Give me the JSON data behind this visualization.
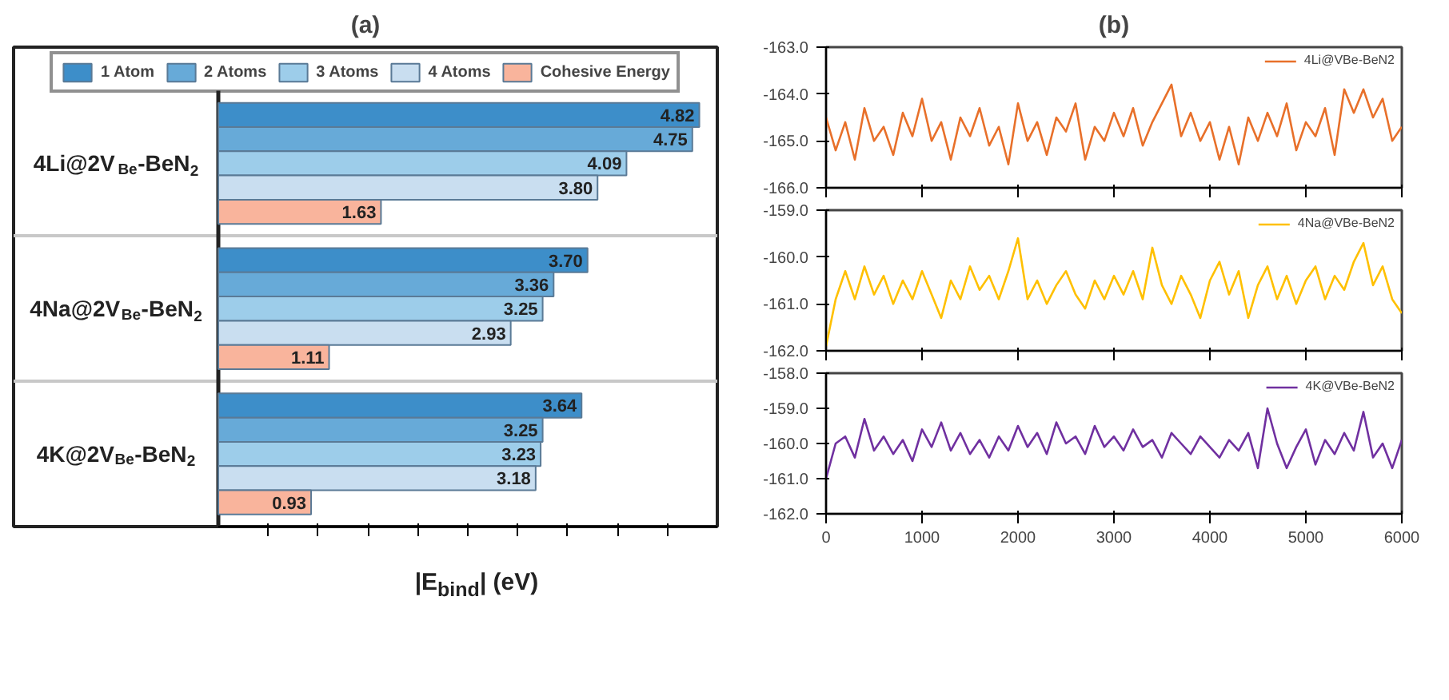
{
  "chart_data": [
    {
      "type": "bar",
      "orientation": "horizontal",
      "title": "(a)",
      "xlabel": "|E$_{bind}$| (eV)",
      "categories": [
        "4Li@2V$_{Be}$-BeN$_{2}$",
        "4Na@2V$_{Be}$-BeN$_{2}$",
        "4K@2V$_{Be}$-BeN$_{2}$"
      ],
      "series": [
        {
          "name": "1 Atom",
          "color": "#3d8ec9",
          "values": [
            4.82,
            3.7,
            3.64
          ],
          "value_labels": [
            "4.82",
            "3.70",
            "3.64"
          ]
        },
        {
          "name": "2 Atoms",
          "color": "#67aad8",
          "values": [
            4.75,
            3.36,
            3.25
          ],
          "value_labels": [
            "4.75",
            "3.36",
            "3.25"
          ]
        },
        {
          "name": "3 Atoms",
          "color": "#9dcdea",
          "values": [
            4.09,
            3.25,
            3.23
          ],
          "value_labels": [
            "4.09",
            "3.25",
            "3.23"
          ]
        },
        {
          "name": "4 Atoms",
          "color": "#c9def0",
          "values": [
            3.8,
            2.93,
            3.18
          ],
          "value_labels": [
            "3.80",
            "2.93",
            "3.18"
          ]
        },
        {
          "name": "Cohesive Energy",
          "color": "#f9b49c",
          "values": [
            1.63,
            1.11,
            0.93
          ],
          "value_labels": [
            "1.63",
            "1.11",
            "0.93"
          ]
        }
      ],
      "xlim": [
        0,
        5
      ],
      "xticks": [
        {
          "value": 0.5,
          "label": null
        },
        {
          "value": 1.0,
          "label": null
        },
        {
          "value": 1.5,
          "label": null
        },
        {
          "value": 2.0,
          "label": null
        },
        {
          "value": 2.5,
          "label": null
        },
        {
          "value": 3.0,
          "label": null
        },
        {
          "value": 3.5,
          "label": null
        },
        {
          "value": 4.0,
          "label": null
        },
        {
          "value": 4.5,
          "label": null
        }
      ],
      "legend": "top",
      "grid": "y"
    },
    {
      "type": "line",
      "title": "(b)",
      "x": [
        0,
        100,
        200,
        300,
        400,
        500,
        600,
        700,
        800,
        900,
        1000,
        1100,
        1200,
        1300,
        1400,
        1500,
        1600,
        1700,
        1800,
        1900,
        2000,
        2100,
        2200,
        2300,
        2400,
        2500,
        2600,
        2700,
        2800,
        2900,
        3000,
        3100,
        3200,
        3300,
        3400,
        3500,
        3600,
        3700,
        3800,
        3900,
        4000,
        4100,
        4200,
        4300,
        4400,
        4500,
        4600,
        4700,
        4800,
        4900,
        5000,
        5100,
        5200,
        5300,
        5400,
        5500,
        5600,
        5700,
        5800,
        5900,
        6000
      ],
      "series": [
        {
          "name": "4Li@VBe-BeN2",
          "color": "#e8702a",
          "values": [
            -164.5,
            -165.2,
            -164.6,
            -165.4,
            -164.3,
            -165.0,
            -164.7,
            -165.3,
            -164.4,
            -164.9,
            -164.1,
            -165.0,
            -164.6,
            -165.4,
            -164.5,
            -164.9,
            -164.3,
            -165.1,
            -164.7,
            -165.5,
            -164.2,
            -165.0,
            -164.6,
            -165.3,
            -164.5,
            -164.8,
            -164.2,
            -165.4,
            -164.7,
            -165.0,
            -164.4,
            -164.9,
            -164.3,
            -165.1,
            -164.6,
            -164.2,
            -163.8,
            -164.9,
            -164.4,
            -165.0,
            -164.6,
            -165.4,
            -164.7,
            -165.5,
            -164.5,
            -165.0,
            -164.4,
            -164.9,
            -164.2,
            -165.2,
            -164.6,
            -164.9,
            -164.3,
            -165.3,
            -163.9,
            -164.4,
            -163.9,
            -164.5,
            -164.1,
            -165.0,
            -164.7
          ]
        }
      ],
      "xlim": [
        0,
        6000
      ],
      "xticks": [
        0,
        1000,
        2000,
        3000,
        4000,
        5000,
        6000
      ],
      "ylim": [
        -166,
        -163
      ],
      "yticks": [
        {
          "value": -166,
          "label": "-166.0"
        },
        {
          "value": -165,
          "label": "-165.0"
        },
        {
          "value": -164,
          "label": "-164.0"
        },
        {
          "value": -163,
          "label": "-163.0"
        }
      ],
      "tick_labels": "y",
      "legend": "top right",
      "marker": "none",
      "line_style": "solid"
    },
    {
      "type": "line",
      "x": [
        0,
        100,
        200,
        300,
        400,
        500,
        600,
        700,
        800,
        900,
        1000,
        1100,
        1200,
        1300,
        1400,
        1500,
        1600,
        1700,
        1800,
        1900,
        2000,
        2100,
        2200,
        2300,
        2400,
        2500,
        2600,
        2700,
        2800,
        2900,
        3000,
        3100,
        3200,
        3300,
        3400,
        3500,
        3600,
        3700,
        3800,
        3900,
        4000,
        4100,
        4200,
        4300,
        4400,
        4500,
        4600,
        4700,
        4800,
        4900,
        5000,
        5100,
        5200,
        5300,
        5400,
        5500,
        5600,
        5700,
        5800,
        5900,
        6000
      ],
      "series": [
        {
          "name": "4Na@VBe-BeN2",
          "color": "#ffc000",
          "values": [
            -161.9,
            -160.9,
            -160.3,
            -160.9,
            -160.2,
            -160.8,
            -160.4,
            -161.0,
            -160.5,
            -160.9,
            -160.3,
            -160.8,
            -161.3,
            -160.5,
            -160.9,
            -160.2,
            -160.7,
            -160.4,
            -160.9,
            -160.3,
            -159.6,
            -160.9,
            -160.5,
            -161.0,
            -160.6,
            -160.3,
            -160.8,
            -161.1,
            -160.5,
            -160.9,
            -160.4,
            -160.8,
            -160.3,
            -160.9,
            -159.8,
            -160.6,
            -161.0,
            -160.4,
            -160.8,
            -161.3,
            -160.5,
            -160.1,
            -160.8,
            -160.3,
            -161.3,
            -160.6,
            -160.2,
            -160.9,
            -160.4,
            -161.0,
            -160.5,
            -160.2,
            -160.9,
            -160.4,
            -160.7,
            -160.1,
            -159.7,
            -160.6,
            -160.2,
            -160.9,
            -161.2
          ]
        }
      ],
      "xlim": [
        0,
        6000
      ],
      "xticks": [
        0,
        1000,
        2000,
        3000,
        4000,
        5000,
        6000
      ],
      "ylim": [
        -162,
        -159
      ],
      "yticks": [
        {
          "value": -162,
          "label": "-162.0"
        },
        {
          "value": -161,
          "label": "-161.0"
        },
        {
          "value": -160,
          "label": "-160.0"
        },
        {
          "value": -159,
          "label": "-159.0"
        }
      ],
      "tick_labels": "y",
      "legend": "top right",
      "marker": "none",
      "line_style": "solid"
    },
    {
      "type": "line",
      "x": [
        0,
        100,
        200,
        300,
        400,
        500,
        600,
        700,
        800,
        900,
        1000,
        1100,
        1200,
        1300,
        1400,
        1500,
        1600,
        1700,
        1800,
        1900,
        2000,
        2100,
        2200,
        2300,
        2400,
        2500,
        2600,
        2700,
        2800,
        2900,
        3000,
        3100,
        3200,
        3300,
        3400,
        3500,
        3600,
        3700,
        3800,
        3900,
        4000,
        4100,
        4200,
        4300,
        4400,
        4500,
        4600,
        4700,
        4800,
        4900,
        5000,
        5100,
        5200,
        5300,
        5400,
        5500,
        5600,
        5700,
        5800,
        5900,
        6000
      ],
      "series": [
        {
          "name": "4K@VBe-BeN2",
          "color": "#7030a0",
          "values": [
            -161.0,
            -160.0,
            -159.8,
            -160.4,
            -159.3,
            -160.2,
            -159.8,
            -160.3,
            -159.9,
            -160.5,
            -159.6,
            -160.1,
            -159.4,
            -160.2,
            -159.7,
            -160.3,
            -159.9,
            -160.4,
            -159.8,
            -160.2,
            -159.5,
            -160.1,
            -159.7,
            -160.3,
            -159.4,
            -160.0,
            -159.8,
            -160.3,
            -159.5,
            -160.1,
            -159.8,
            -160.2,
            -159.6,
            -160.1,
            -159.9,
            -160.4,
            -159.7,
            -160.0,
            -160.3,
            -159.8,
            -160.1,
            -160.4,
            -159.9,
            -160.2,
            -159.7,
            -160.7,
            -159.0,
            -160.0,
            -160.7,
            -160.1,
            -159.6,
            -160.6,
            -159.9,
            -160.3,
            -159.7,
            -160.2,
            -159.1,
            -160.4,
            -160.0,
            -160.7,
            -159.9
          ]
        }
      ],
      "xlim": [
        0,
        6000
      ],
      "xticks": [
        0,
        1000,
        2000,
        3000,
        4000,
        5000,
        6000
      ],
      "ylim": [
        -162,
        -158
      ],
      "yticks": [
        {
          "value": -162,
          "label": "-162.0"
        },
        {
          "value": -161,
          "label": "-161.0"
        },
        {
          "value": -160,
          "label": "-160.0"
        },
        {
          "value": -159,
          "label": "-159.0"
        },
        {
          "value": -158,
          "label": "-158.0"
        }
      ],
      "legend": "top right",
      "marker": "none",
      "line_style": "solid"
    }
  ]
}
